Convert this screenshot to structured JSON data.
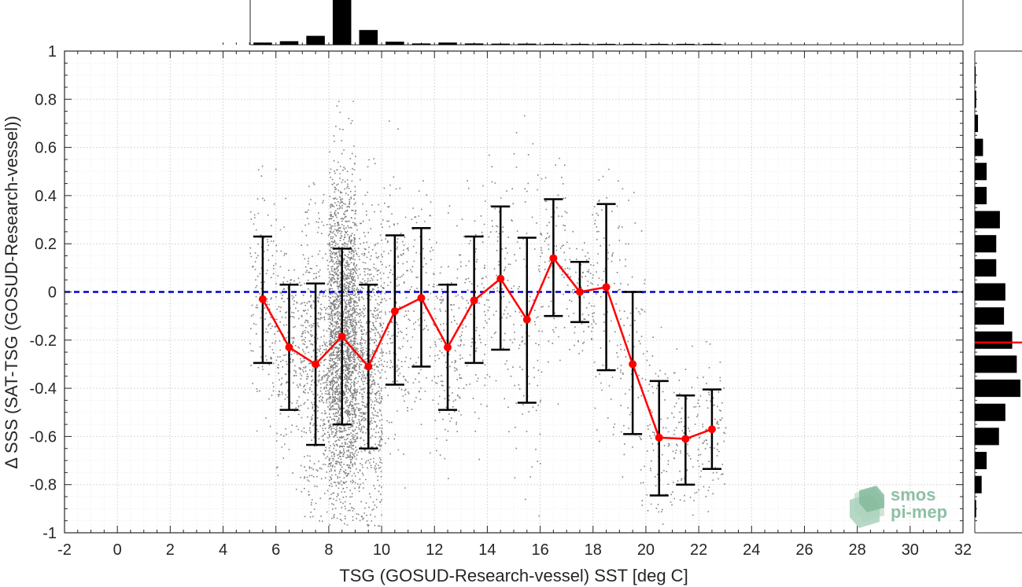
{
  "chart_data": {
    "type": "scatter",
    "xlabel": "TSG (GOSUD-Research-vessel) SST [deg C]",
    "ylabel": "Δ SSS (SAT-TSG (GOSUD-Research-vessel))",
    "xlim": [
      -2,
      32
    ],
    "ylim": [
      -1,
      1
    ],
    "x_ticks": [
      -2,
      0,
      2,
      4,
      6,
      8,
      10,
      12,
      14,
      16,
      18,
      20,
      22,
      24,
      26,
      28,
      30,
      32
    ],
    "y_ticks": [
      1,
      0.8,
      0.6,
      0.4,
      0.2,
      0,
      -0.2,
      -0.4,
      -0.6,
      -0.8,
      -1
    ],
    "grid": true,
    "reference_line": {
      "y": 0,
      "color": "#0000cc",
      "style": "dashed"
    },
    "binned_mean": {
      "color": "#ff0000",
      "x": [
        5.5,
        6.5,
        7.5,
        8.5,
        9.5,
        10.5,
        11.5,
        12.5,
        13.5,
        14.5,
        15.5,
        16.5,
        17.5,
        18.5,
        19.5,
        20.5,
        21.5,
        22.5
      ],
      "mean": [
        -0.03,
        -0.23,
        -0.3,
        -0.185,
        -0.31,
        -0.08,
        -0.025,
        -0.23,
        -0.035,
        0.055,
        -0.115,
        0.14,
        0.0,
        0.02,
        -0.3,
        -0.605,
        -0.61,
        -0.57
      ],
      "upper": [
        0.23,
        0.03,
        0.035,
        0.18,
        0.03,
        0.235,
        0.265,
        0.03,
        0.23,
        0.355,
        0.225,
        0.385,
        0.125,
        0.365,
        0.0,
        -0.37,
        -0.43,
        -0.405
      ],
      "lower": [
        -0.295,
        -0.49,
        -0.635,
        -0.55,
        -0.65,
        -0.385,
        -0.31,
        -0.49,
        -0.295,
        -0.24,
        -0.46,
        -0.1,
        -0.125,
        -0.325,
        -0.59,
        -0.845,
        -0.8,
        -0.735
      ]
    },
    "scatter_color": "#808080",
    "top_histogram": {
      "bin_centers": [
        5.5,
        6.5,
        7.5,
        8.5,
        9.5,
        10.5,
        11.5,
        12.5,
        13.5,
        14.5,
        15.5,
        16.5,
        17.5,
        18.5,
        19.5,
        20.5,
        21.5,
        22.5
      ],
      "relative_counts": [
        0.05,
        0.08,
        0.2,
        1.0,
        0.33,
        0.07,
        0.03,
        0.05,
        0.03,
        0.025,
        0.025,
        0.02,
        0.02,
        0.02,
        0.02,
        0.02,
        0.02,
        0.02
      ]
    },
    "right_histogram": {
      "bin_centers": [
        0.9,
        0.8,
        0.7,
        0.6,
        0.5,
        0.4,
        0.3,
        0.2,
        0.1,
        0.0,
        -0.1,
        -0.2,
        -0.3,
        -0.4,
        -0.5,
        -0.6,
        -0.7,
        -0.8,
        -0.9
      ],
      "relative_counts": [
        0.02,
        0.03,
        0.07,
        0.18,
        0.26,
        0.26,
        0.55,
        0.47,
        0.47,
        0.67,
        0.64,
        0.82,
        0.92,
        1.0,
        0.67,
        0.53,
        0.26,
        0.15,
        0.03
      ],
      "median_line": {
        "y": -0.21,
        "color": "#ff0000"
      }
    }
  },
  "logo": {
    "line1": "smos",
    "line2": "pi-mep"
  }
}
